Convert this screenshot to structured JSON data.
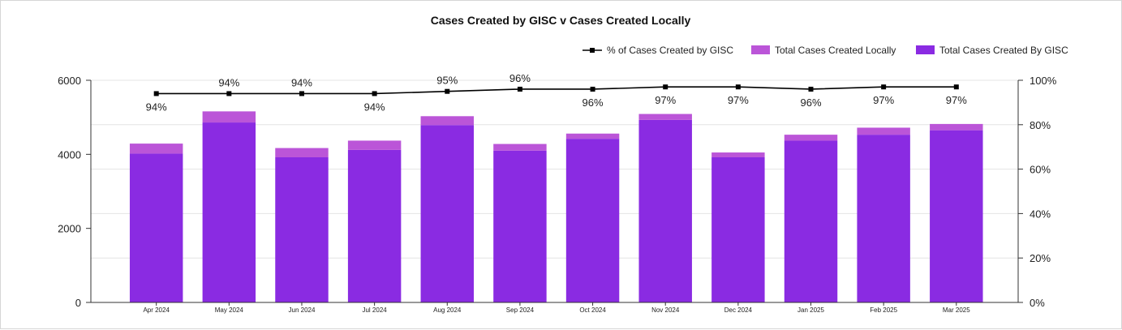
{
  "chart_data": {
    "type": "bar",
    "title": "Cases Created by GISC v Cases Created Locally",
    "categories": [
      "Apr 2024",
      "May 2024",
      "Jun 2024",
      "Jul 2024",
      "Aug 2024",
      "Sep 2024",
      "Oct 2024",
      "Nov 2024",
      "Dec 2024",
      "Jan 2025",
      "Feb 2025",
      "Mar 2025"
    ],
    "series": [
      {
        "name": "Total Cases Created By GISC",
        "type": "bar",
        "stack": "cases",
        "axis": "left",
        "color": "#8a2be2",
        "values": [
          4020,
          4860,
          3920,
          4120,
          4790,
          4100,
          4420,
          4930,
          3920,
          4370,
          4530,
          4650
        ]
      },
      {
        "name": "Total Cases Created Locally",
        "type": "bar",
        "stack": "cases",
        "axis": "left",
        "color": "#bb55d8",
        "values": [
          270,
          300,
          250,
          250,
          240,
          180,
          140,
          160,
          130,
          160,
          190,
          170
        ]
      },
      {
        "name": "% of Cases Created by GISC",
        "type": "line",
        "axis": "right",
        "color": "#000000",
        "values": [
          94,
          94,
          94,
          94,
          95,
          96,
          96,
          97,
          97,
          96,
          97,
          97
        ],
        "labels": [
          "94%",
          "94%",
          "94%",
          "94%",
          "95%",
          "96%",
          "96%",
          "97%",
          "97%",
          "96%",
          "97%",
          "97%"
        ]
      }
    ],
    "y_left": {
      "min": 0,
      "max": 6000,
      "ticks": [
        "0",
        "2000",
        "4000",
        "6000"
      ],
      "tick_values": [
        0,
        2000,
        4000,
        6000
      ]
    },
    "y_right": {
      "min": 0,
      "max": 100,
      "ticks": [
        "0%",
        "20%",
        "40%",
        "60%",
        "80%",
        "100%"
      ],
      "tick_values": [
        0,
        20,
        40,
        60,
        80,
        100
      ]
    },
    "grid": true,
    "legend_position": "top-right",
    "xlabel": "",
    "ylabel": ""
  }
}
